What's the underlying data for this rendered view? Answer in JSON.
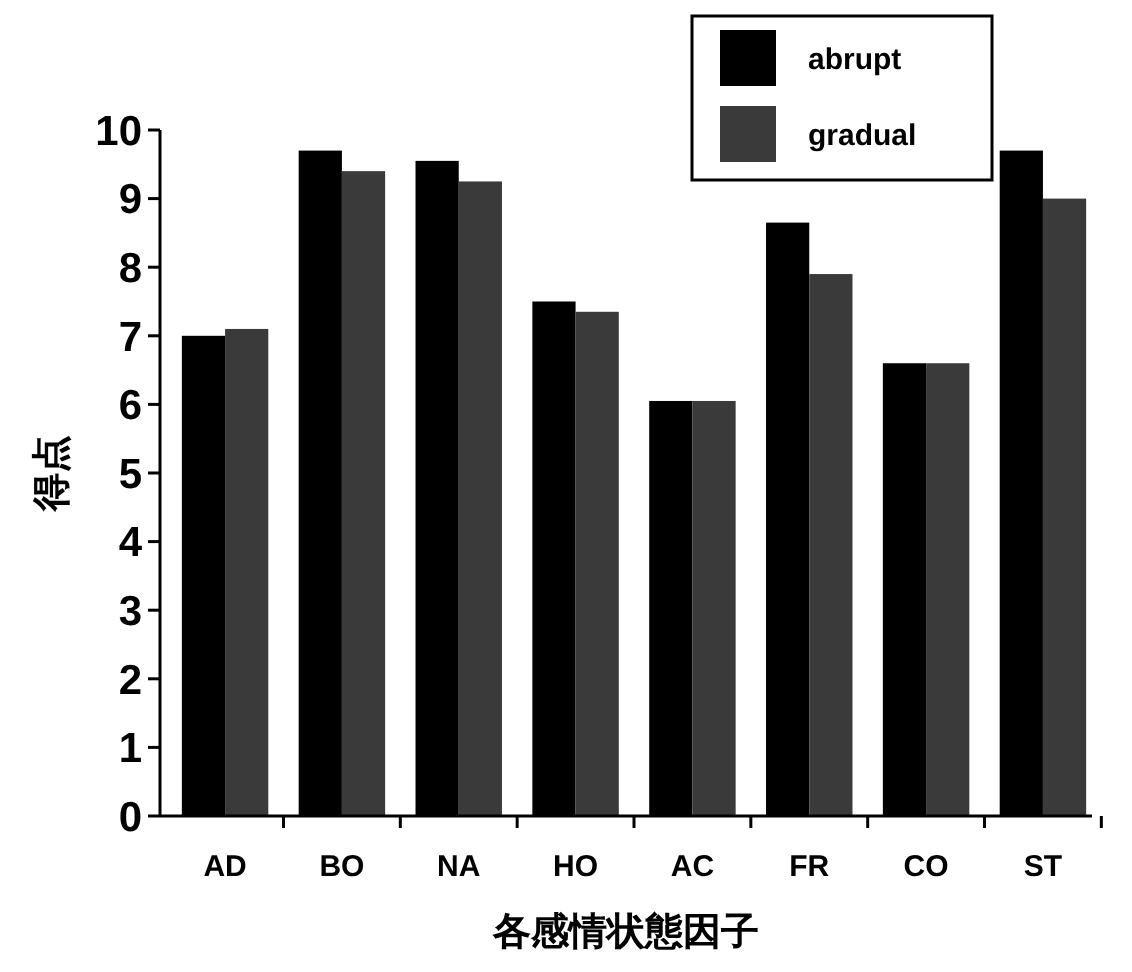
{
  "chart_data": {
    "type": "bar",
    "xlabel": "各感情状態因子",
    "ylabel": "得点",
    "categories": [
      "AD",
      "BO",
      "NA",
      "HO",
      "AC",
      "FR",
      "CO",
      "ST"
    ],
    "series": [
      {
        "name": "abrupt",
        "color": "#000000",
        "values": [
          7.0,
          9.7,
          9.55,
          7.5,
          6.05,
          8.65,
          6.6,
          9.7
        ]
      },
      {
        "name": "gradual",
        "color": "#3a3a3a",
        "values": [
          7.1,
          9.4,
          9.25,
          7.35,
          6.05,
          7.9,
          6.6,
          9.0
        ]
      }
    ],
    "ylim": [
      0,
      10
    ],
    "yticks": [
      0,
      1,
      2,
      3,
      4,
      5,
      6,
      7,
      8,
      9,
      10
    ],
    "grid": false,
    "legend": "top right"
  }
}
